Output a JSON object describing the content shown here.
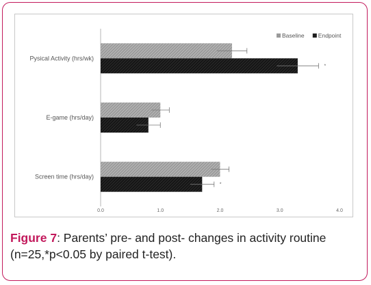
{
  "caption": {
    "figure_label": "Figure 7",
    "text_line1": ": Parents’ pre- and post- changes in activity routine",
    "text_line2": "(n=25,*p<0.05 by paired t-test)."
  },
  "colors": {
    "baseline": "#9a9a9a",
    "endpoint": "#1f1f1f",
    "frame": "#c2185b",
    "figure_label": "#c2185b"
  },
  "chart_data": {
    "type": "bar",
    "orientation": "horizontal",
    "categories": [
      "Pysical Activity (hrs/wk)",
      "E-game (hrs/day)",
      "Screen time (hrs/day)"
    ],
    "series": [
      {
        "name": "Baseline",
        "values": [
          2.2,
          1.0,
          2.0
        ],
        "errors": [
          0.25,
          0.15,
          0.15
        ],
        "pattern": "hatched-light"
      },
      {
        "name": "Endpoint",
        "values": [
          3.3,
          0.8,
          1.7
        ],
        "errors": [
          0.35,
          0.2,
          0.2
        ],
        "pattern": "hatched-dark"
      }
    ],
    "significance": [
      {
        "category": "Pysical Activity (hrs/wk)",
        "marker": "*"
      },
      {
        "category": "Screen time (hrs/day)",
        "marker": "*"
      }
    ],
    "xlim": [
      0,
      4.0
    ],
    "xticks": [
      "0.0",
      "1.0",
      "2.0",
      "3.0",
      "4.0"
    ],
    "xlabel": "",
    "ylabel": "",
    "legend_position": "top-right",
    "grid": false
  }
}
